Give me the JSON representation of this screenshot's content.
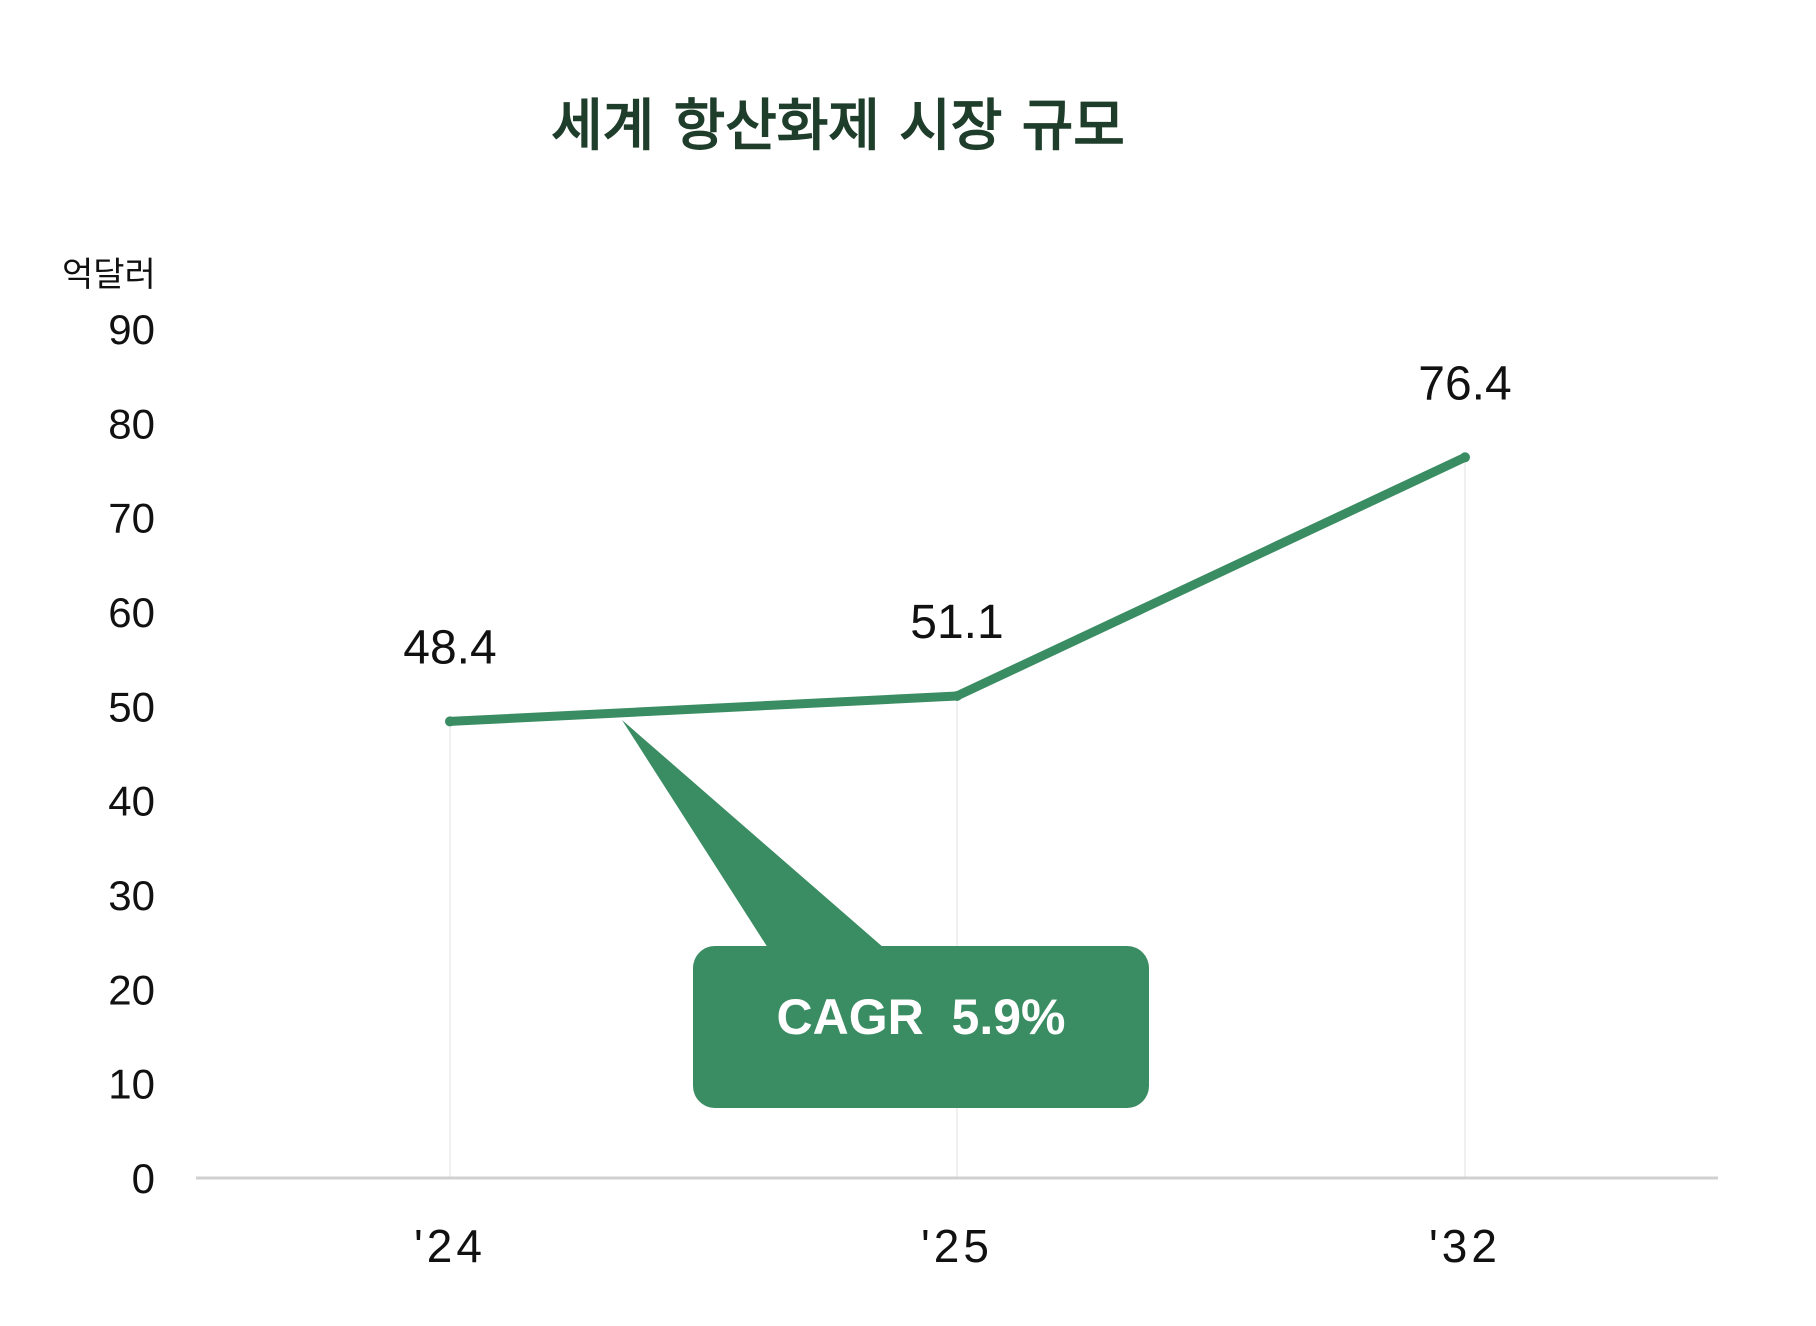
{
  "chart_data": {
    "type": "line",
    "title": "세계 항산화제 시장 규모",
    "ylabel": "억달러",
    "xlabel": "",
    "categories": [
      "'24",
      "'25",
      "'32"
    ],
    "series": [
      {
        "values": [
          48.4,
          51.1,
          76.4
        ]
      }
    ],
    "data_labels": [
      "48.4",
      "51.1",
      "76.4"
    ],
    "ylim": [
      0,
      90
    ],
    "yticks": [
      0,
      10,
      20,
      30,
      40,
      50,
      60,
      70,
      80,
      90
    ],
    "grid": false,
    "line_color": "#3a8c62",
    "annotation": {
      "text": "CAGR  5.9%",
      "color": "#3a8c62"
    }
  }
}
